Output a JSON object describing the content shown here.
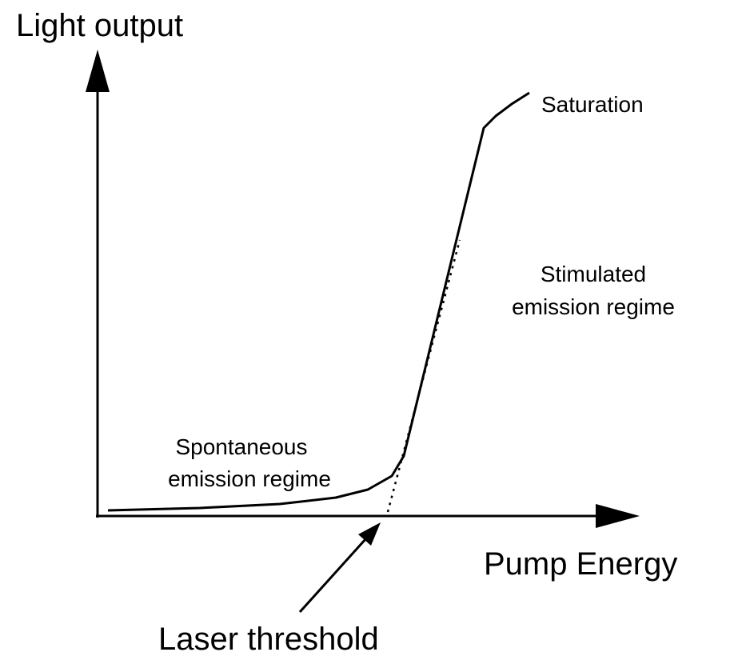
{
  "axes": {
    "y_label": "Light output",
    "x_label": "Pump Energy"
  },
  "annotations": {
    "saturation": "Saturation",
    "stimulated": [
      "Stimulated",
      "emission regime"
    ],
    "spontaneous": [
      "Spontaneous",
      "emission regime"
    ],
    "threshold": "Laser threshold"
  }
}
